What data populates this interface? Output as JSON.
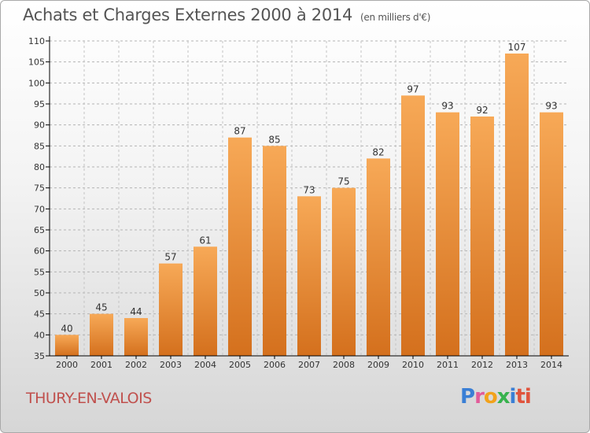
{
  "title": "Achats et Charges Externes 2000 à 2014",
  "unit_note": "(en milliers d'€)",
  "commune": "THURY-EN-VALOIS",
  "logo": [
    "P",
    "r",
    "o",
    "x",
    "i",
    "ti"
  ],
  "colors": {
    "bar_light": "#f6a553",
    "bar_dark": "#d87320",
    "axis": "#000000",
    "grid": "#b0b0b0",
    "commune": "#c0504d"
  },
  "chart_data": {
    "type": "bar",
    "categories": [
      "2000",
      "2001",
      "2002",
      "2003",
      "2004",
      "2005",
      "2006",
      "2007",
      "2008",
      "2009",
      "2010",
      "2011",
      "2012",
      "2013",
      "2014"
    ],
    "values": [
      40,
      45,
      44,
      57,
      61,
      87,
      85,
      73,
      75,
      82,
      97,
      93,
      92,
      107,
      93
    ],
    "ylim": [
      35,
      110
    ],
    "yticks": [
      35,
      40,
      45,
      50,
      55,
      60,
      65,
      70,
      75,
      80,
      85,
      90,
      95,
      100,
      105,
      110
    ],
    "grid": true,
    "xlabel": "",
    "ylabel": ""
  }
}
